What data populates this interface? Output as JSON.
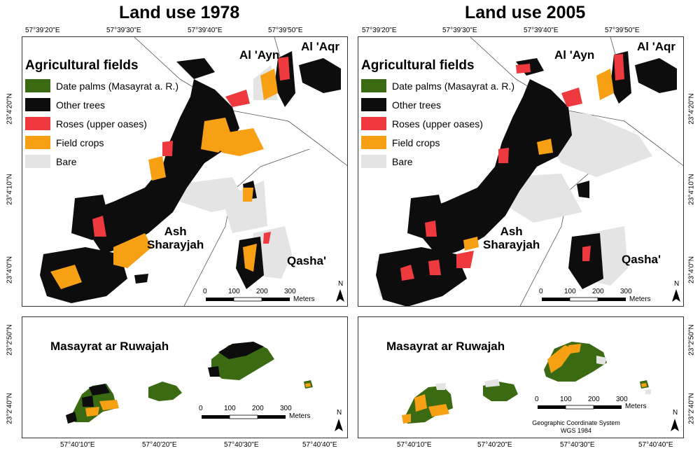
{
  "titles": {
    "left": "Land use 1978",
    "right": "Land use 2005"
  },
  "longitude_ticks_top": [
    "57°39'20\"E",
    "57°39'30\"E",
    "57°39'40\"E",
    "57°39'50\"E"
  ],
  "longitude_ticks_bottom": [
    "57°40'10\"E",
    "57°40'20\"E",
    "57°40'30\"E",
    "57°40'40\"E"
  ],
  "latitude_ticks_top": [
    "23°4'20\"N",
    "23°4'10\"N",
    "23°4'0\"N"
  ],
  "latitude_ticks_bottom": [
    "23°2'50\"N",
    "23°2'40\"N"
  ],
  "legend": {
    "title": "Agricultural fields",
    "items": [
      {
        "label": "Date palms (Masayrat a. R.)",
        "color": "#3a6a12"
      },
      {
        "label": "Other trees",
        "color": "#0d0d0d"
      },
      {
        "label": "Roses (upper oases)",
        "color": "#ee3a3f"
      },
      {
        "label": "Field crops",
        "color": "#f7a014"
      },
      {
        "label": "Bare",
        "color": "#e4e4e4"
      }
    ]
  },
  "places": {
    "al_ayn": "Al 'Ayn",
    "al_aqr": "Al 'Aqr",
    "ash_sharayjah_1": "Ash",
    "ash_sharayjah_2": "Sharayjah",
    "qasha": "Qasha'",
    "masayrat": "Masayrat ar Ruwajah"
  },
  "scale": {
    "ticks": [
      "0",
      "100",
      "200",
      "300"
    ],
    "unit": "Meters"
  },
  "north_label": "N",
  "crs": {
    "line1": "Geographic Coordinate System",
    "line2": "WGS 1984"
  },
  "colors": {
    "date_palms": "#3a6a12",
    "other_trees": "#0d0d0d",
    "roses": "#ee3a3f",
    "field_crops": "#f7a014",
    "bare": "#e4e4e4",
    "boundary": "#555555"
  }
}
